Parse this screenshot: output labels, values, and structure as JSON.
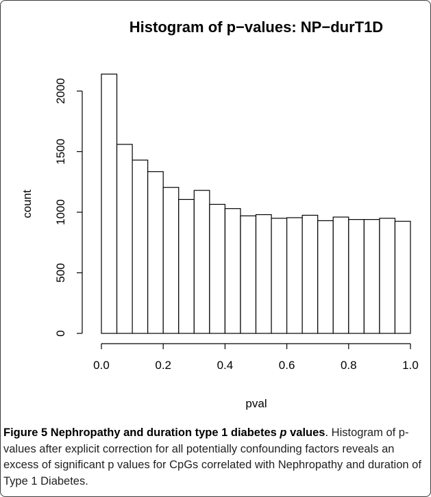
{
  "chart_data": {
    "type": "bar",
    "title": "Histogram of p−values: NP−durT1D",
    "xlabel": "pval",
    "ylabel": "count",
    "bin_edges": [
      0.0,
      0.05,
      0.1,
      0.15,
      0.2,
      0.25,
      0.3,
      0.35,
      0.4,
      0.45,
      0.5,
      0.55,
      0.6,
      0.65,
      0.7,
      0.75,
      0.8,
      0.85,
      0.9,
      0.95,
      1.0
    ],
    "values": [
      2140,
      1560,
      1430,
      1335,
      1205,
      1105,
      1180,
      1065,
      1030,
      970,
      980,
      950,
      955,
      975,
      930,
      960,
      940,
      940,
      950,
      925
    ],
    "xlim": [
      0,
      1
    ],
    "ylim": [
      0,
      2150
    ],
    "x_ticks": [
      0.0,
      0.2,
      0.4,
      0.6,
      0.8,
      1.0
    ],
    "x_tick_labels": [
      "0.0",
      "0.2",
      "0.4",
      "0.6",
      "0.8",
      "1.0"
    ],
    "y_ticks": [
      0,
      500,
      1000,
      1500,
      2000
    ],
    "y_tick_labels": [
      "0",
      "500",
      "1000",
      "1500",
      "2000"
    ],
    "colors": {
      "bar_fill": "#ffffff",
      "bar_stroke": "#000000",
      "axis": "#000000"
    },
    "grid": false,
    "legend": "none"
  },
  "caption": {
    "label": "Figure 5",
    "title_pre": "Nephropathy and duration type 1 diabetes ",
    "title_italic": "p",
    "title_post": " values",
    "period": ".",
    "text": "Histogram of p-values after explicit correction for all potentially confounding factors reveals an excess of significant p values for CpGs correlated with Nephropathy and duration of Type 1 Diabetes."
  }
}
